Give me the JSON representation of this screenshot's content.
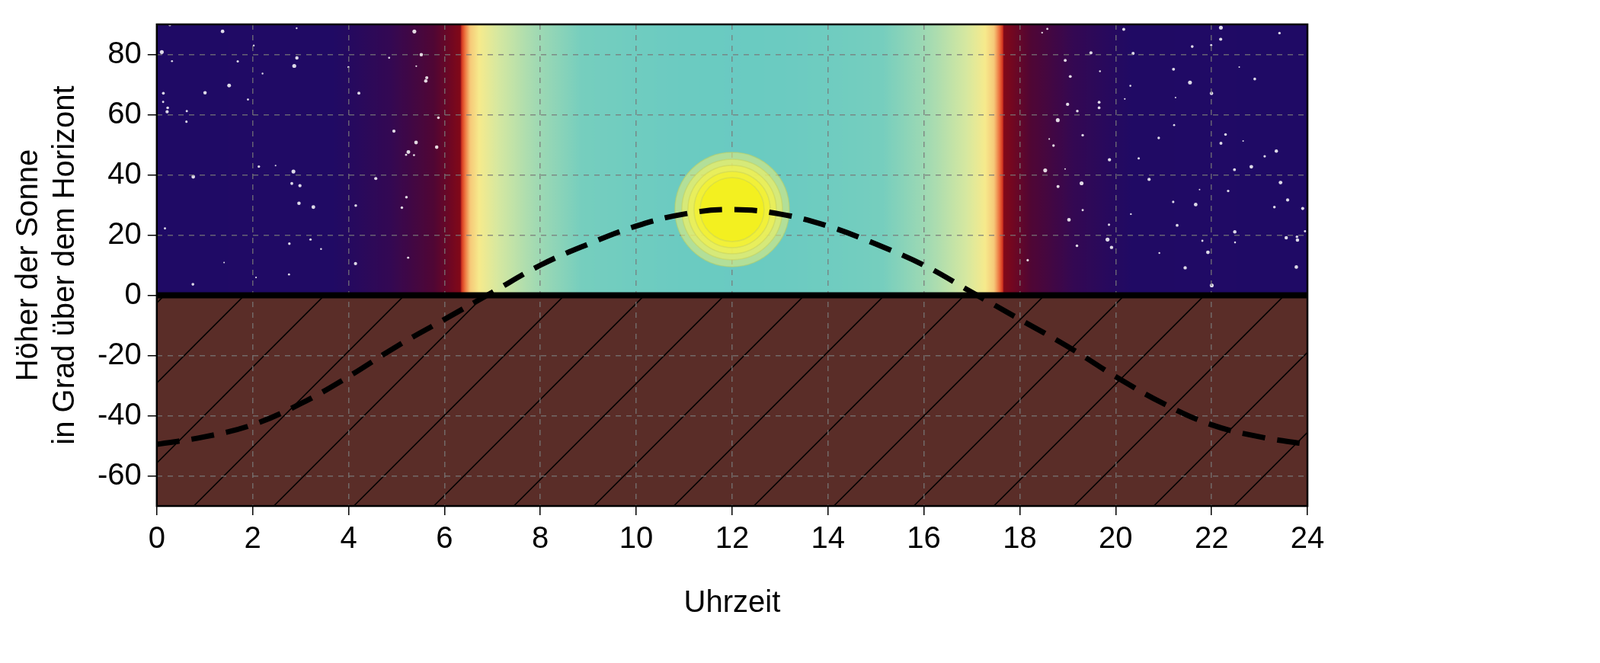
{
  "chart_data": {
    "type": "line",
    "x": [
      0,
      1,
      2,
      3,
      4,
      5,
      6,
      7,
      8,
      9,
      10,
      11,
      12,
      13,
      14,
      15,
      16,
      17,
      18,
      19,
      20,
      21,
      22,
      23,
      24
    ],
    "values": [
      -49.5,
      -47,
      -43,
      -36,
      -27,
      -17,
      -8,
      1,
      10,
      17,
      23,
      27,
      28.5,
      27,
      23,
      17,
      10,
      1,
      -8,
      -17,
      -27,
      -36,
      -43,
      -47,
      -49.5
    ],
    "x_label": "Uhrzeit",
    "y_label": [
      "Höher der Sonne",
      "in Grad über dem Horizont"
    ],
    "xlim": [
      0,
      24
    ],
    "xticks": [
      0,
      2,
      4,
      6,
      8,
      10,
      12,
      14,
      16,
      18,
      20,
      22,
      24
    ],
    "ylim": [
      -70,
      90
    ],
    "yticks": [
      -60,
      -40,
      -20,
      0,
      20,
      40,
      60,
      80
    ],
    "grid": true,
    "color": "#000000",
    "line_style": "dashed",
    "marker": "none"
  }
}
